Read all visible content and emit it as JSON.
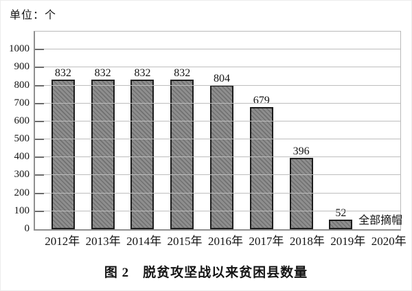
{
  "figure": {
    "unit_label": "单位：个",
    "caption": "图 2　脱贫攻坚战以来贫困县数量"
  },
  "chart_data": {
    "type": "bar",
    "title": "图 2　脱贫攻坚战以来贫困县数量",
    "unit": "单位：个",
    "categories": [
      "2012年",
      "2013年",
      "2014年",
      "2015年",
      "2016年",
      "2017年",
      "2018年",
      "2019年",
      "2020年"
    ],
    "values": [
      832,
      832,
      832,
      832,
      804,
      679,
      396,
      52,
      null
    ],
    "bar_value_labels": [
      "832",
      "832",
      "832",
      "832",
      "804",
      "679",
      "396",
      "52",
      ""
    ],
    "annotation": {
      "text": "全部摘帽",
      "category": "2020年"
    },
    "xlabel": "",
    "ylabel": "",
    "ylim": [
      0,
      1100
    ],
    "yticks": [
      0,
      100,
      200,
      300,
      400,
      500,
      600,
      700,
      800,
      900,
      1000
    ],
    "grid": true,
    "legend": null,
    "colors": {
      "bar_fill": "#8e8e8e",
      "bar_hatch": "#707070",
      "bar_border": "#1c1c1c",
      "gridline": "#bdbdbd",
      "axis": "#8f8f8f",
      "tick": "#6b6b6b",
      "text": "#141414",
      "background": "#ffffff"
    }
  }
}
